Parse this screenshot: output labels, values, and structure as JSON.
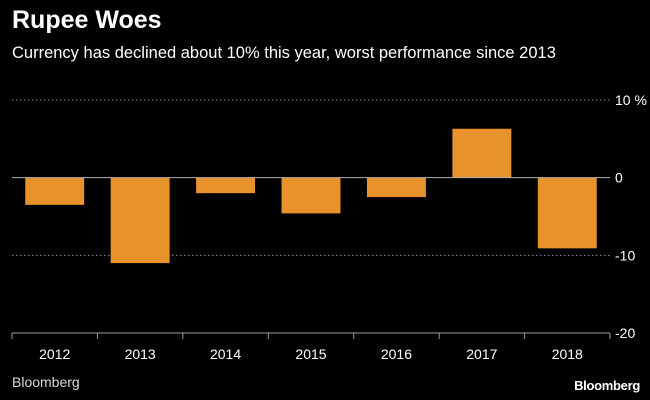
{
  "chart_data": {
    "type": "bar",
    "title": "Rupee Woes",
    "subtitle": "Currency has declined about 10% this year, worst performance since 2013",
    "categories": [
      "2012",
      "2013",
      "2014",
      "2015",
      "2016",
      "2017",
      "2018"
    ],
    "values": [
      -3.5,
      -11.0,
      -2.0,
      -4.6,
      -2.5,
      6.3,
      -9.1
    ],
    "ylim": [
      -20,
      10
    ],
    "yticks": [
      10,
      0,
      -10,
      -20
    ],
    "ytick_labels": [
      "10 %",
      "0",
      "-10",
      "-20"
    ],
    "xlabel": "",
    "ylabel": "",
    "grid": true,
    "colors": {
      "background": "#000000",
      "bar": "#e8922b",
      "grid": "#8a8a8a",
      "axis": "#9a9a9a",
      "text": "#ffffff"
    }
  },
  "source": "Bloomberg",
  "brand": "Bloomberg"
}
